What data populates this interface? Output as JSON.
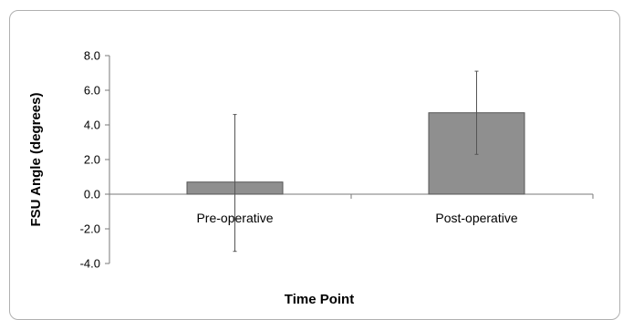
{
  "chart_data": {
    "type": "bar",
    "categories": [
      "Pre-operative",
      "Post-operative"
    ],
    "values": [
      0.7,
      4.7
    ],
    "error_low": [
      -3.3,
      2.3
    ],
    "error_high": [
      4.6,
      7.1
    ],
    "xlabel": "Time Point",
    "ylabel": "FSU Angle (degrees)",
    "ylim": [
      -4.0,
      8.0
    ],
    "yticks": [
      "-4.0",
      "-2.0",
      "0.0",
      "2.0",
      "4.0",
      "6.0",
      "8.0"
    ],
    "grid": false,
    "legend": "none",
    "bar_color": "#8f8f8f"
  }
}
